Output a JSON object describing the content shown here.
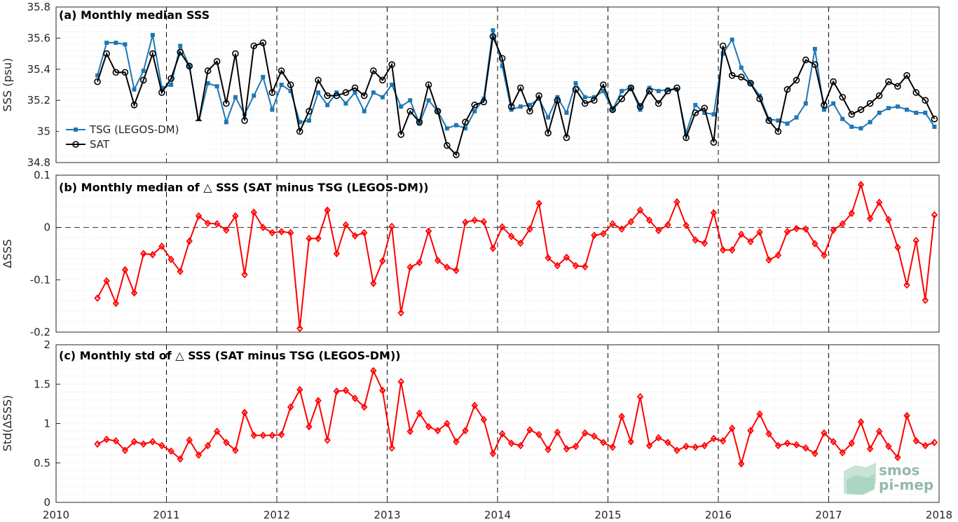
{
  "chart_data": [
    {
      "type": "line",
      "title": "(a) Monthly median SSS",
      "ylabel": "SSS (psu)",
      "xlim": [
        2010,
        2018
      ],
      "ylim": [
        34.8,
        35.8
      ],
      "yticks": [
        "34.8",
        "35",
        "35.2",
        "35.4",
        "35.6",
        "35.8"
      ],
      "grid": true,
      "legend_position": "left",
      "x": [
        2010.375,
        2010.458,
        2010.542,
        2010.625,
        2010.708,
        2010.792,
        2010.875,
        2010.958,
        2011.042,
        2011.125,
        2011.208,
        2011.292,
        2011.375,
        2011.458,
        2011.542,
        2011.625,
        2011.708,
        2011.792,
        2011.875,
        2011.958,
        2012.042,
        2012.125,
        2012.208,
        2012.292,
        2012.375,
        2012.458,
        2012.542,
        2012.625,
        2012.708,
        2012.792,
        2012.875,
        2012.958,
        2013.042,
        2013.125,
        2013.208,
        2013.292,
        2013.375,
        2013.458,
        2013.542,
        2013.625,
        2013.708,
        2013.792,
        2013.875,
        2013.958,
        2014.042,
        2014.125,
        2014.208,
        2014.292,
        2014.375,
        2014.458,
        2014.542,
        2014.625,
        2014.708,
        2014.792,
        2014.875,
        2014.958,
        2015.042,
        2015.125,
        2015.208,
        2015.292,
        2015.375,
        2015.458,
        2015.542,
        2015.625,
        2015.708,
        2015.792,
        2015.875,
        2015.958,
        2016.042,
        2016.125,
        2016.208,
        2016.292,
        2016.375,
        2016.458,
        2016.542,
        2016.625,
        2016.708,
        2016.792,
        2016.875,
        2016.958,
        2017.042,
        2017.125,
        2017.208,
        2017.292,
        2017.375,
        2017.458,
        2017.542,
        2017.625,
        2017.708,
        2017.792,
        2017.875,
        2017.958
      ],
      "series": [
        {
          "name": "TSG (LEGOS-DM)",
          "color": "#1f77b4",
          "marker": "asterisk",
          "values": [
            35.36,
            35.57,
            35.57,
            35.56,
            35.27,
            35.39,
            35.62,
            35.28,
            35.3,
            35.55,
            35.42,
            35.06,
            35.31,
            35.29,
            35.06,
            35.22,
            35.11,
            35.23,
            35.35,
            35.14,
            35.3,
            35.26,
            35.06,
            35.07,
            35.25,
            35.17,
            35.25,
            35.18,
            35.25,
            35.13,
            35.25,
            35.22,
            35.3,
            35.16,
            35.2,
            35.05,
            35.2,
            35.13,
            35.02,
            35.04,
            35.02,
            35.13,
            35.21,
            35.65,
            35.42,
            35.14,
            35.16,
            35.17,
            35.21,
            35.09,
            35.22,
            35.12,
            35.31,
            35.22,
            35.22,
            35.26,
            35.14,
            35.26,
            35.28,
            35.14,
            35.28,
            35.26,
            35.27,
            35.27,
            34.99,
            35.17,
            35.12,
            35.11,
            35.5,
            35.59,
            35.41,
            35.31,
            35.23,
            35.08,
            35.07,
            35.05,
            35.09,
            35.18,
            35.53,
            35.14,
            35.18,
            35.08,
            35.03,
            35.02,
            35.06,
            35.12,
            35.15,
            35.16,
            35.14,
            35.12,
            35.12,
            35.03
          ]
        },
        {
          "name": "SAT",
          "color": "#000000",
          "marker": "circle",
          "values": [
            35.32,
            35.5,
            35.38,
            35.38,
            35.17,
            35.33,
            35.5,
            35.25,
            35.34,
            35.51,
            35.42,
            35.06,
            35.39,
            35.45,
            35.18,
            35.5,
            35.07,
            35.55,
            35.57,
            35.25,
            35.39,
            35.3,
            35.0,
            35.13,
            35.33,
            35.23,
            35.23,
            35.25,
            35.28,
            35.23,
            35.39,
            35.33,
            35.43,
            34.98,
            35.13,
            35.06,
            35.3,
            35.13,
            34.91,
            34.85,
            35.06,
            35.17,
            35.19,
            35.61,
            35.47,
            35.16,
            35.28,
            35.13,
            35.23,
            34.99,
            35.2,
            34.96,
            35.27,
            35.18,
            35.2,
            35.3,
            35.14,
            35.21,
            35.28,
            35.16,
            35.26,
            35.18,
            35.26,
            35.28,
            34.96,
            35.12,
            35.15,
            34.93,
            35.55,
            35.36,
            35.35,
            35.31,
            35.21,
            35.07,
            35.0,
            35.27,
            35.33,
            35.46,
            35.43,
            35.17,
            35.32,
            35.22,
            35.11,
            35.14,
            35.18,
            35.23,
            35.32,
            35.29,
            35.36,
            35.25,
            35.2,
            35.08
          ]
        }
      ]
    },
    {
      "type": "line",
      "title": "(b) Monthly median of △ SSS (SAT minus TSG (LEGOS-DM))",
      "ylabel": "ΔSSS",
      "xlim": [
        2010,
        2018
      ],
      "ylim": [
        -0.2,
        0.1
      ],
      "yticks": [
        "-0.2",
        "-0.1",
        "0",
        "0.1"
      ],
      "grid": true,
      "zero_line": true,
      "series": [
        {
          "name": "",
          "color": "#ff0000",
          "marker": "diamond",
          "values": [
            -0.135,
            -0.102,
            -0.145,
            -0.081,
            -0.125,
            -0.05,
            -0.052,
            -0.036,
            -0.061,
            -0.084,
            -0.026,
            0.022,
            0.008,
            0.007,
            -0.005,
            0.022,
            -0.09,
            0.029,
            0.0,
            -0.01,
            -0.008,
            -0.01,
            -0.193,
            -0.021,
            -0.021,
            0.033,
            -0.05,
            0.005,
            -0.016,
            -0.01,
            -0.107,
            -0.064,
            0.002,
            -0.163,
            -0.076,
            -0.067,
            -0.007,
            -0.063,
            -0.076,
            -0.082,
            0.01,
            0.014,
            0.011,
            -0.04,
            0.001,
            -0.017,
            -0.03,
            -0.003,
            0.046,
            -0.058,
            -0.073,
            -0.057,
            -0.073,
            -0.075,
            -0.015,
            -0.012,
            0.007,
            -0.003,
            0.011,
            0.033,
            0.014,
            -0.006,
            0.005,
            0.049,
            0.004,
            -0.024,
            -0.03,
            0.028,
            -0.043,
            -0.043,
            -0.013,
            -0.027,
            -0.009,
            -0.062,
            -0.053,
            -0.008,
            -0.002,
            -0.003,
            -0.031,
            -0.053,
            -0.005,
            0.007,
            0.027,
            0.082,
            0.017,
            0.048,
            0.015,
            -0.038,
            -0.11,
            -0.025,
            -0.139,
            0.024
          ]
        }
      ]
    },
    {
      "type": "line",
      "title": "(c) Monthly std of △ SSS (SAT minus TSG (LEGOS-DM))",
      "ylabel": "Std(ΔSSS)",
      "xlabel_ticks": [
        "2010",
        "2011",
        "2012",
        "2013",
        "2014",
        "2015",
        "2016",
        "2017",
        "2018"
      ],
      "xlim": [
        2010,
        2018
      ],
      "ylim": [
        0,
        2
      ],
      "yticks": [
        "0",
        "0.5",
        "1",
        "1.5",
        "2"
      ],
      "grid": true,
      "series": [
        {
          "name": "",
          "color": "#ff0000",
          "marker": "diamond",
          "values": [
            0.74,
            0.8,
            0.78,
            0.66,
            0.77,
            0.74,
            0.77,
            0.72,
            0.65,
            0.55,
            0.79,
            0.6,
            0.72,
            0.9,
            0.76,
            0.66,
            1.14,
            0.85,
            0.85,
            0.85,
            0.86,
            1.21,
            1.43,
            0.96,
            1.29,
            0.79,
            1.41,
            1.42,
            1.32,
            1.21,
            1.67,
            1.42,
            0.69,
            1.53,
            0.9,
            1.13,
            0.96,
            0.91,
            1.0,
            0.77,
            0.91,
            1.23,
            1.05,
            0.62,
            0.87,
            0.75,
            0.72,
            0.92,
            0.86,
            0.67,
            0.89,
            0.68,
            0.71,
            0.88,
            0.84,
            0.76,
            0.7,
            1.09,
            0.77,
            1.34,
            0.72,
            0.82,
            0.76,
            0.66,
            0.71,
            0.7,
            0.72,
            0.81,
            0.78,
            0.94,
            0.49,
            0.91,
            1.12,
            0.87,
            0.72,
            0.75,
            0.73,
            0.69,
            0.62,
            0.88,
            0.77,
            0.63,
            0.75,
            1.02,
            0.68,
            0.9,
            0.71,
            0.57,
            1.1,
            0.78,
            0.72,
            0.76
          ]
        }
      ]
    }
  ],
  "logo": {
    "line1": "smos",
    "line2": "pi-mep"
  },
  "colors": {
    "grid": "#dddddd",
    "axis": "#262626",
    "tsg": "#1f77b4",
    "sat": "#000000",
    "delta": "#ff0000"
  }
}
